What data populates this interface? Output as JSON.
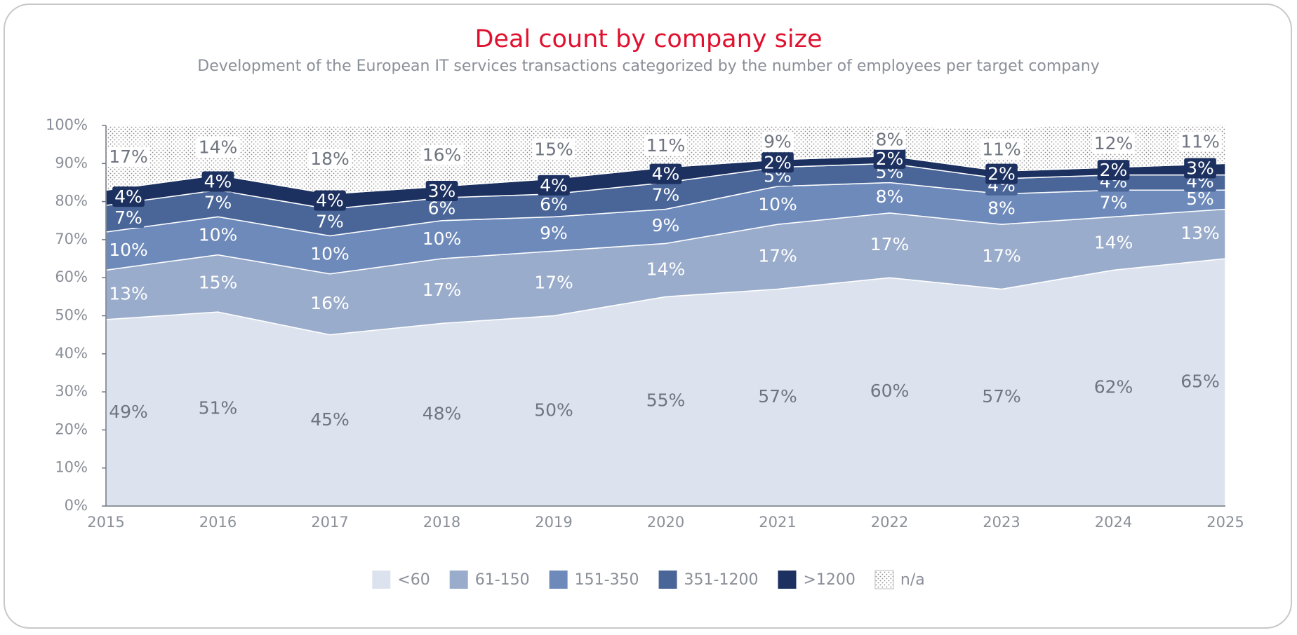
{
  "chart_data": {
    "type": "stacked-area",
    "title": "Deal count by company size",
    "subtitle": "Development of the European IT services transactions categorized by the number of employees per target company",
    "categories": [
      "2015",
      "2016",
      "2017",
      "2018",
      "2019",
      "2020",
      "2021",
      "2022",
      "2023",
      "2024",
      "2025"
    ],
    "ylim": [
      0,
      100
    ],
    "yticks": [
      {
        "value": 0,
        "label": "0%"
      },
      {
        "value": 10,
        "label": "10%"
      },
      {
        "value": 20,
        "label": "20%"
      },
      {
        "value": 30,
        "label": "30%"
      },
      {
        "value": 40,
        "label": "40%"
      },
      {
        "value": 50,
        "label": "50%"
      },
      {
        "value": 60,
        "label": "60%"
      },
      {
        "value": 70,
        "label": "70%"
      },
      {
        "value": 80,
        "label": "80%"
      },
      {
        "value": 90,
        "label": "90%"
      },
      {
        "value": 100,
        "label": "100%"
      }
    ],
    "legend": "bottom",
    "series": [
      {
        "name": "<60",
        "color": "#dde3ee",
        "label_color": "#6f7580",
        "values": [
          49,
          51,
          45,
          48,
          50,
          55,
          57,
          60,
          57,
          62,
          65
        ],
        "value_labels": [
          "49%",
          "51%",
          "45%",
          "48%",
          "50%",
          "55%",
          "57%",
          "60%",
          "57%",
          "62%",
          "65%"
        ]
      },
      {
        "name": "61-150",
        "color": "#9aaccb",
        "label_color": "#ffffff",
        "values": [
          13,
          15,
          16,
          17,
          17,
          14,
          17,
          17,
          17,
          14,
          13
        ],
        "value_labels": [
          "13%",
          "15%",
          "16%",
          "17%",
          "17%",
          "14%",
          "17%",
          "17%",
          "17%",
          "14%",
          "13%"
        ]
      },
      {
        "name": "151-350",
        "color": "#6e8abb",
        "label_color": "#ffffff",
        "values": [
          10,
          10,
          10,
          10,
          9,
          9,
          10,
          8,
          8,
          7,
          5
        ],
        "value_labels": [
          "10%",
          "10%",
          "10%",
          "10%",
          "9%",
          "9%",
          "10%",
          "8%",
          "8%",
          "7%",
          "5%"
        ]
      },
      {
        "name": "351-1200",
        "color": "#4a6698",
        "label_color": "#ffffff",
        "values": [
          7,
          7,
          7,
          6,
          6,
          7,
          5,
          5,
          4,
          4,
          4
        ],
        "value_labels": [
          "7%",
          "7%",
          "7%",
          "6%",
          "6%",
          "7%",
          "5%",
          "5%",
          "4%",
          "4%",
          "4%"
        ]
      },
      {
        "name": ">1200",
        "color": "#1d3160",
        "label_color": "#ffffff",
        "values": [
          4,
          4,
          4,
          3,
          4,
          4,
          2,
          2,
          2,
          2,
          3
        ],
        "value_labels": [
          "4%",
          "4%",
          "4%",
          "3%",
          "4%",
          "4%",
          "2%",
          "2%",
          "2%",
          "2%",
          "3%"
        ]
      },
      {
        "name": "n/a",
        "color": "#ffffff",
        "label_color": "#6f7580",
        "pattern": "dots",
        "values": [
          17,
          14,
          18,
          16,
          15,
          11,
          9,
          8,
          11,
          12,
          11
        ],
        "value_labels": [
          "17%",
          "14%",
          "18%",
          "16%",
          "15%",
          "11%",
          "9%",
          "8%",
          "11%",
          "12%",
          "11%"
        ]
      }
    ]
  }
}
